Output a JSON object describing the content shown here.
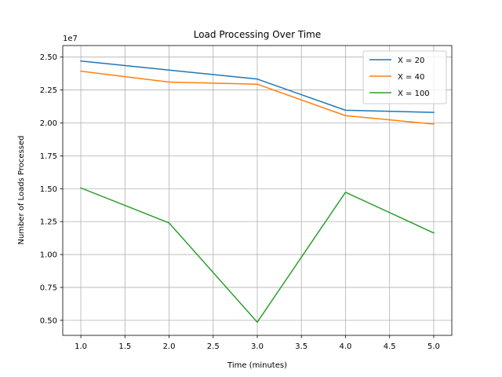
{
  "chart_data": {
    "type": "line",
    "title": "Load Processing Over Time",
    "xlabel": "Time (minutes)",
    "ylabel": "Number of Loads Processed",
    "y_offset_label": "1e7",
    "x": [
      1.0,
      2.0,
      3.0,
      4.0,
      5.0
    ],
    "xlim": [
      0.795,
      5.205
    ],
    "ylim": [
      0.3857,
      2.5876
    ],
    "x_ticks": [
      "1.0",
      "1.5",
      "2.0",
      "2.5",
      "3.0",
      "3.5",
      "4.0",
      "4.5",
      "5.0"
    ],
    "y_ticks": [
      "0.50",
      "0.75",
      "1.00",
      "1.25",
      "1.50",
      "1.75",
      "2.00",
      "2.25",
      "2.50"
    ],
    "grid": true,
    "legend_position": "top-right",
    "series": [
      {
        "name": "X = 20",
        "color": "#1f77b4",
        "values": [
          2.47,
          2.401,
          2.333,
          2.096,
          2.08
        ]
      },
      {
        "name": "X = 40",
        "color": "#ff7f0e",
        "values": [
          2.393,
          2.31,
          2.294,
          2.055,
          1.991
        ]
      },
      {
        "name": "X = 100",
        "color": "#2ca02c",
        "values": [
          1.506,
          1.24,
          0.486,
          1.473,
          1.164
        ]
      }
    ]
  }
}
